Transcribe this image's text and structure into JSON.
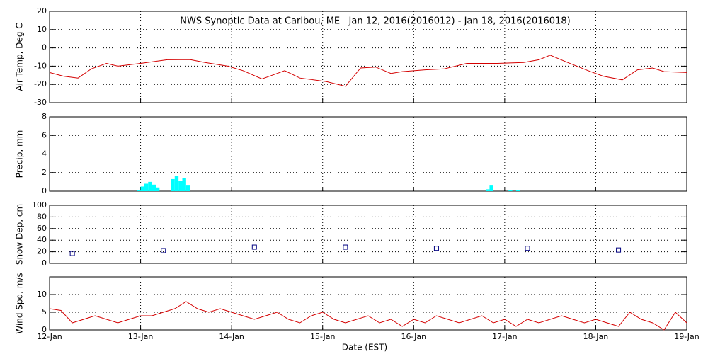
{
  "chart_data": [
    {
      "type": "line",
      "title": "NWS Synoptic Data at Caribou, ME   Jan 12, 2016(2016012) - Jan 18, 2016(2016018)",
      "ylabel": "Air Temp, Deg C",
      "color": "#d40000",
      "xlim": [
        0,
        168
      ],
      "ylim": [
        -30,
        20
      ],
      "yticks": [
        -30,
        -20,
        -10,
        0,
        10,
        20
      ],
      "grid": true,
      "x": [
        0,
        3.7,
        7.5,
        11,
        15,
        18,
        24,
        31,
        37,
        41,
        47,
        51,
        56,
        62,
        66,
        73,
        78,
        82,
        86,
        90,
        93,
        99,
        104,
        110,
        118,
        125,
        129,
        132,
        136,
        142,
        146,
        151,
        155,
        159,
        162,
        168
      ],
      "values": [
        -13.5,
        -15.5,
        -16.5,
        -11.5,
        -8.5,
        -10,
        -8.5,
        -6.5,
        -6.4,
        -8,
        -10,
        -12.5,
        -17,
        -12.5,
        -16.5,
        -18.5,
        -21,
        -11,
        -10.5,
        -14,
        -13,
        -12,
        -11.5,
        -8.5,
        -8.5,
        -8,
        -6.5,
        -4,
        -7.5,
        -12.5,
        -15.5,
        -17.5,
        -12,
        -11,
        -13,
        -13.5
      ]
    },
    {
      "type": "bar",
      "ylabel": "Precip, mm",
      "color": "#00ffff",
      "xlim": [
        0,
        168
      ],
      "ylim": [
        0,
        8
      ],
      "yticks": [
        0,
        2,
        4,
        6,
        8
      ],
      "grid": true,
      "x": [
        23,
        24,
        25,
        26,
        27,
        28,
        32,
        33,
        34,
        35,
        36,
        115,
        116,
        121,
        123
      ],
      "values": [
        0.1,
        0.5,
        0.8,
        1.0,
        0.7,
        0.4,
        1.3,
        1.6,
        1.1,
        1.4,
        0.6,
        0.2,
        0.6,
        0.1,
        0.1
      ]
    },
    {
      "type": "scatter",
      "ylabel": "Snow Dep, cm",
      "color": "#000080",
      "xlim": [
        0,
        168
      ],
      "ylim": [
        0,
        100
      ],
      "yticks": [
        0,
        20,
        40,
        60,
        80,
        100
      ],
      "grid": true,
      "x": [
        6,
        30,
        54,
        78,
        102,
        126,
        150
      ],
      "values": [
        17,
        22,
        28,
        28,
        26,
        26,
        23
      ]
    },
    {
      "type": "line",
      "ylabel": "Wind Spd, m/s",
      "xlabel": "Date (EST)",
      "color": "#d40000",
      "xlim": [
        0,
        168
      ],
      "ylim": [
        0,
        15
      ],
      "yticks": [
        0,
        5,
        10
      ],
      "grid": true,
      "xticks": [
        {
          "value": 0,
          "label": "12-Jan"
        },
        {
          "value": 24,
          "label": "13-Jan"
        },
        {
          "value": 48,
          "label": "14-Jan"
        },
        {
          "value": 72,
          "label": "15-Jan"
        },
        {
          "value": 96,
          "label": "16-Jan"
        },
        {
          "value": 120,
          "label": "17-Jan"
        },
        {
          "value": 144,
          "label": "18-Jan"
        },
        {
          "value": 168,
          "label": "19-Jan"
        }
      ],
      "x": [
        0,
        3,
        6,
        9,
        12,
        15,
        18,
        21,
        24,
        27,
        30,
        33,
        36,
        39,
        42,
        45,
        48,
        51,
        54,
        57,
        60,
        63,
        66,
        69,
        72,
        75,
        78,
        81,
        84,
        87,
        90,
        93,
        96,
        99,
        102,
        105,
        108,
        111,
        114,
        117,
        120,
        123,
        126,
        129,
        132,
        135,
        138,
        141,
        144,
        147,
        150,
        153,
        156,
        159,
        162,
        165,
        168
      ],
      "values": [
        6,
        5.5,
        2,
        3,
        4,
        3,
        2,
        3,
        4,
        4,
        5,
        6,
        8,
        6,
        5,
        6,
        5,
        4,
        3,
        4,
        5,
        3,
        2,
        4,
        5,
        3,
        2,
        3,
        4,
        2,
        3,
        1,
        3,
        2,
        4,
        3,
        2,
        3,
        4,
        2,
        3,
        1,
        3,
        2,
        3,
        4,
        3,
        2,
        3,
        2,
        1,
        5,
        3,
        2,
        0,
        5,
        2
      ]
    }
  ]
}
